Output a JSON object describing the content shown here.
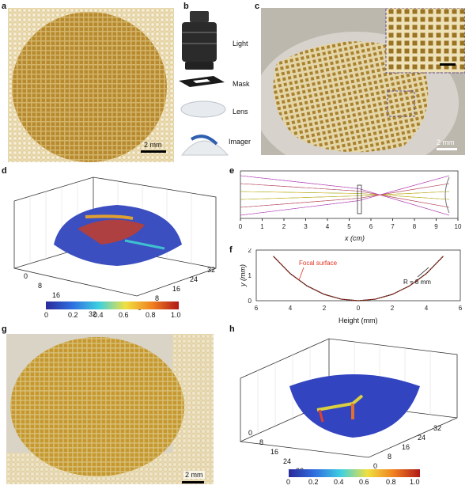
{
  "panels": {
    "a": {
      "letter": "a",
      "scale": "2 mm"
    },
    "b": {
      "letter": "b",
      "labels": [
        "Light",
        "Mask",
        "Lens",
        "Imager"
      ]
    },
    "c": {
      "letter": "c",
      "scale": "2 mm"
    },
    "d": {
      "letter": "d",
      "x_ticks": [
        "0",
        "8",
        "16",
        "24",
        "32"
      ],
      "y_ticks": [
        "0",
        "8",
        "16",
        "24",
        "32"
      ],
      "colorbar_ticks": [
        "0",
        "0.2",
        "0.4",
        "0.6",
        "0.8",
        "1.0"
      ]
    },
    "e": {
      "letter": "e",
      "xlabel": "x (cm)",
      "x_ticks": [
        "0",
        "1",
        "2",
        "3",
        "4",
        "5",
        "6",
        "7",
        "8",
        "9",
        "10"
      ]
    },
    "f": {
      "letter": "f",
      "ylabel": "y (mm)",
      "xlabel": "Height (mm)",
      "y_ticks": [
        "0",
        "1",
        "2"
      ],
      "x_ticks": [
        "6",
        "4",
        "2",
        "0",
        "2",
        "4",
        "6"
      ],
      "annotation_focal": "Focal surface",
      "annotation_R": "R = 8 mm"
    },
    "g": {
      "letter": "g",
      "scale": "2 mm"
    },
    "h": {
      "letter": "h",
      "x_ticks": [
        "0",
        "8",
        "16",
        "24",
        "32"
      ],
      "y_ticks": [
        "0",
        "8",
        "16",
        "24",
        "32"
      ],
      "colorbar_ticks": [
        "0",
        "0.2",
        "0.4",
        "0.6",
        "0.8",
        "1.0"
      ]
    }
  },
  "chart_data": [
    {
      "type": "line",
      "panel": "f",
      "xlabel": "Height (mm)",
      "ylabel": "y (mm)",
      "xlim": [
        -6,
        6
      ],
      "ylim": [
        0,
        2
      ],
      "series": [
        {
          "name": "Focal surface",
          "x": [
            -5,
            -4,
            -3,
            -2,
            -1,
            0,
            1,
            2,
            3,
            4,
            5
          ],
          "y": [
            1.76,
            1.07,
            0.58,
            0.25,
            0.06,
            0,
            0.06,
            0.25,
            0.58,
            1.07,
            1.76
          ]
        }
      ]
    }
  ],
  "colors": {
    "gold": "#c9a24a",
    "dark_gold": "#9a7424",
    "red_curve": "#e0301e"
  }
}
